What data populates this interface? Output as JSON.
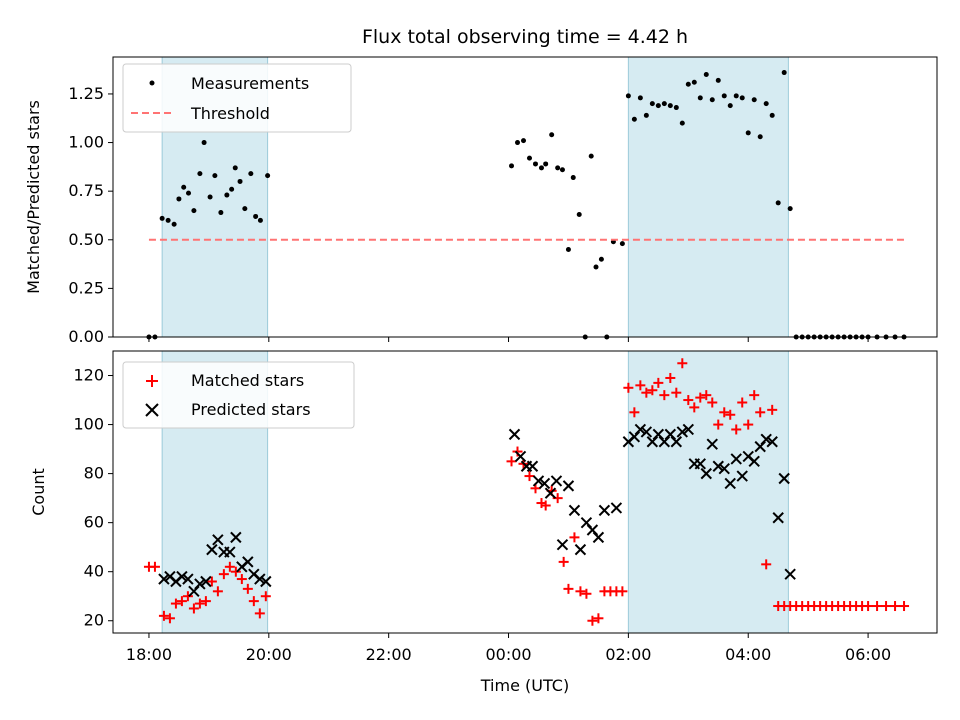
{
  "chart_data": [
    {
      "type": "scatter",
      "title": "Flux total observing time = 4.42 h",
      "xlabel": "",
      "ylabel": "Matched/Predicted stars",
      "xlim": [
        -0.6,
        13.15
      ],
      "ylim": [
        0,
        1.44
      ],
      "grid": false,
      "legend_position": "top-left",
      "yticks": [
        0.0,
        0.25,
        0.5,
        0.75,
        1.0,
        1.25
      ],
      "ytick_labels": [
        "0.00",
        "0.25",
        "0.50",
        "0.75",
        "1.00",
        "1.25"
      ],
      "shaded_intervals": [
        [
          0.22,
          1.98
        ],
        [
          8.0,
          10.67
        ]
      ],
      "series": [
        {
          "name": "Measurements",
          "style": "dots",
          "color": "#000000",
          "x": [
            0.0,
            0.1,
            0.22,
            0.32,
            0.42,
            0.5,
            0.58,
            0.66,
            0.75,
            0.85,
            0.92,
            1.02,
            1.1,
            1.2,
            1.3,
            1.38,
            1.44,
            1.52,
            1.6,
            1.7,
            1.78,
            1.86,
            1.98,
            6.05,
            6.15,
            6.25,
            6.35,
            6.45,
            6.55,
            6.62,
            6.72,
            6.82,
            6.9,
            7.0,
            7.08,
            7.18,
            7.28,
            7.38,
            7.46,
            7.55,
            7.64,
            7.75,
            7.9,
            8.0,
            8.1,
            8.2,
            8.3,
            8.4,
            8.5,
            8.6,
            8.7,
            8.8,
            8.9,
            9.0,
            9.1,
            9.2,
            9.3,
            9.4,
            9.5,
            9.6,
            9.7,
            9.8,
            9.9,
            10.0,
            10.1,
            10.2,
            10.3,
            10.4,
            10.5,
            10.6,
            10.7,
            10.8,
            10.9,
            11.0,
            11.1,
            11.2,
            11.3,
            11.4,
            11.5,
            11.6,
            11.7,
            11.8,
            11.9,
            12.0,
            12.15,
            12.3,
            12.45,
            12.6
          ],
          "y": [
            0.0,
            0.0,
            0.61,
            0.6,
            0.58,
            0.71,
            0.77,
            0.74,
            0.65,
            0.84,
            1.0,
            0.72,
            0.83,
            0.64,
            0.73,
            0.76,
            0.87,
            0.8,
            0.66,
            0.84,
            0.62,
            0.6,
            0.83,
            0.88,
            1.0,
            1.01,
            0.92,
            0.89,
            0.87,
            0.89,
            1.04,
            0.87,
            0.86,
            0.45,
            0.82,
            0.63,
            0.0,
            0.93,
            0.36,
            0.4,
            0.0,
            0.49,
            0.48,
            1.24,
            1.12,
            1.23,
            1.14,
            1.2,
            1.19,
            1.2,
            1.19,
            1.18,
            1.1,
            1.3,
            1.31,
            1.23,
            1.35,
            1.22,
            1.32,
            1.24,
            1.19,
            1.24,
            1.23,
            1.05,
            1.22,
            1.03,
            1.2,
            1.14,
            0.69,
            1.36,
            0.66,
            0.0,
            0.0,
            0.0,
            0.0,
            0.0,
            0.0,
            0.0,
            0.0,
            0.0,
            0.0,
            0.0,
            0.0,
            0.0,
            0.0,
            0.0,
            0.0,
            0.0
          ]
        },
        {
          "name": "Threshold",
          "style": "dashed-line",
          "color": "#ff7373",
          "x": [
            0.0,
            12.6
          ],
          "y": [
            0.5,
            0.5
          ]
        }
      ]
    },
    {
      "type": "scatter",
      "title": "",
      "xlabel": "Time (UTC)",
      "ylabel": "Count",
      "xlim": [
        -0.6,
        13.15
      ],
      "ylim": [
        15,
        130
      ],
      "grid": false,
      "legend_position": "top-left",
      "yticks": [
        20,
        40,
        60,
        80,
        100,
        120
      ],
      "ytick_labels": [
        "20",
        "40",
        "60",
        "80",
        "100",
        "120"
      ],
      "xticks": [
        0,
        2,
        4,
        6,
        8,
        10,
        12
      ],
      "xtick_labels": [
        "18:00",
        "20:00",
        "22:00",
        "00:00",
        "02:00",
        "04:00",
        "06:00"
      ],
      "shaded_intervals": [
        [
          0.22,
          1.98
        ],
        [
          8.0,
          10.67
        ]
      ],
      "series": [
        {
          "name": "Matched stars",
          "style": "plus",
          "color": "#ff0000",
          "x": [
            0.0,
            0.1,
            0.25,
            0.35,
            0.45,
            0.55,
            0.65,
            0.75,
            0.85,
            0.95,
            1.05,
            1.15,
            1.25,
            1.35,
            1.45,
            1.55,
            1.65,
            1.75,
            1.85,
            1.95,
            6.05,
            6.15,
            6.25,
            6.35,
            6.45,
            6.55,
            6.62,
            6.72,
            6.82,
            6.92,
            7.0,
            7.1,
            7.2,
            7.3,
            7.4,
            7.5,
            7.6,
            7.7,
            7.8,
            7.9,
            8.0,
            8.1,
            8.2,
            8.3,
            8.4,
            8.5,
            8.6,
            8.7,
            8.8,
            8.9,
            9.0,
            9.1,
            9.2,
            9.3,
            9.4,
            9.5,
            9.6,
            9.7,
            9.8,
            9.9,
            10.0,
            10.1,
            10.2,
            10.3,
            10.4,
            10.5,
            10.6,
            10.7,
            10.8,
            10.9,
            11.0,
            11.1,
            11.2,
            11.3,
            11.4,
            11.5,
            11.6,
            11.7,
            11.8,
            11.9,
            12.0,
            12.15,
            12.3,
            12.45,
            12.6
          ],
          "y": [
            42,
            42,
            22,
            21,
            27,
            28,
            30,
            25,
            27,
            28,
            36,
            32,
            39,
            42,
            40,
            37,
            33,
            28,
            23,
            30,
            85,
            89,
            84,
            79,
            74,
            68,
            67,
            73,
            70,
            44,
            33,
            54,
            32,
            31,
            20,
            21,
            32,
            32,
            32,
            32,
            115,
            105,
            116,
            113,
            114,
            117,
            112,
            119,
            113,
            125,
            110,
            107,
            111,
            112,
            109,
            100,
            105,
            104,
            98,
            109,
            100,
            112,
            105,
            43,
            106,
            26,
            26,
            26,
            26,
            26,
            26,
            26,
            26,
            26,
            26,
            26,
            26,
            26,
            26,
            26,
            26,
            26,
            26,
            26,
            26
          ]
        },
        {
          "name": "Predicted stars",
          "style": "x",
          "color": "#000000",
          "x": [
            0.25,
            0.35,
            0.45,
            0.55,
            0.65,
            0.75,
            0.85,
            0.95,
            1.05,
            1.15,
            1.25,
            1.35,
            1.45,
            1.55,
            1.65,
            1.75,
            1.85,
            1.95,
            6.1,
            6.2,
            6.3,
            6.4,
            6.5,
            6.6,
            6.7,
            6.8,
            6.9,
            7.0,
            7.1,
            7.2,
            7.3,
            7.4,
            7.5,
            7.6,
            7.8,
            8.0,
            8.1,
            8.2,
            8.3,
            8.4,
            8.5,
            8.6,
            8.7,
            8.8,
            8.9,
            9.0,
            9.1,
            9.2,
            9.3,
            9.4,
            9.5,
            9.6,
            9.7,
            9.8,
            9.9,
            10.0,
            10.1,
            10.2,
            10.3,
            10.4,
            10.5,
            10.6,
            10.7
          ],
          "y": [
            37,
            38,
            36,
            38,
            37,
            32,
            35,
            36,
            49,
            53,
            48,
            48,
            54,
            42,
            44,
            39,
            37,
            36,
            96,
            87,
            83,
            83,
            77,
            76,
            72,
            77,
            51,
            75,
            65,
            49,
            60,
            57,
            54,
            65,
            66,
            93,
            95,
            98,
            97,
            93,
            96,
            93,
            96,
            93,
            97,
            98,
            84,
            84,
            80,
            92,
            83,
            82,
            76,
            86,
            79,
            87,
            85,
            91,
            94,
            93,
            62,
            78,
            39
          ]
        }
      ]
    }
  ]
}
